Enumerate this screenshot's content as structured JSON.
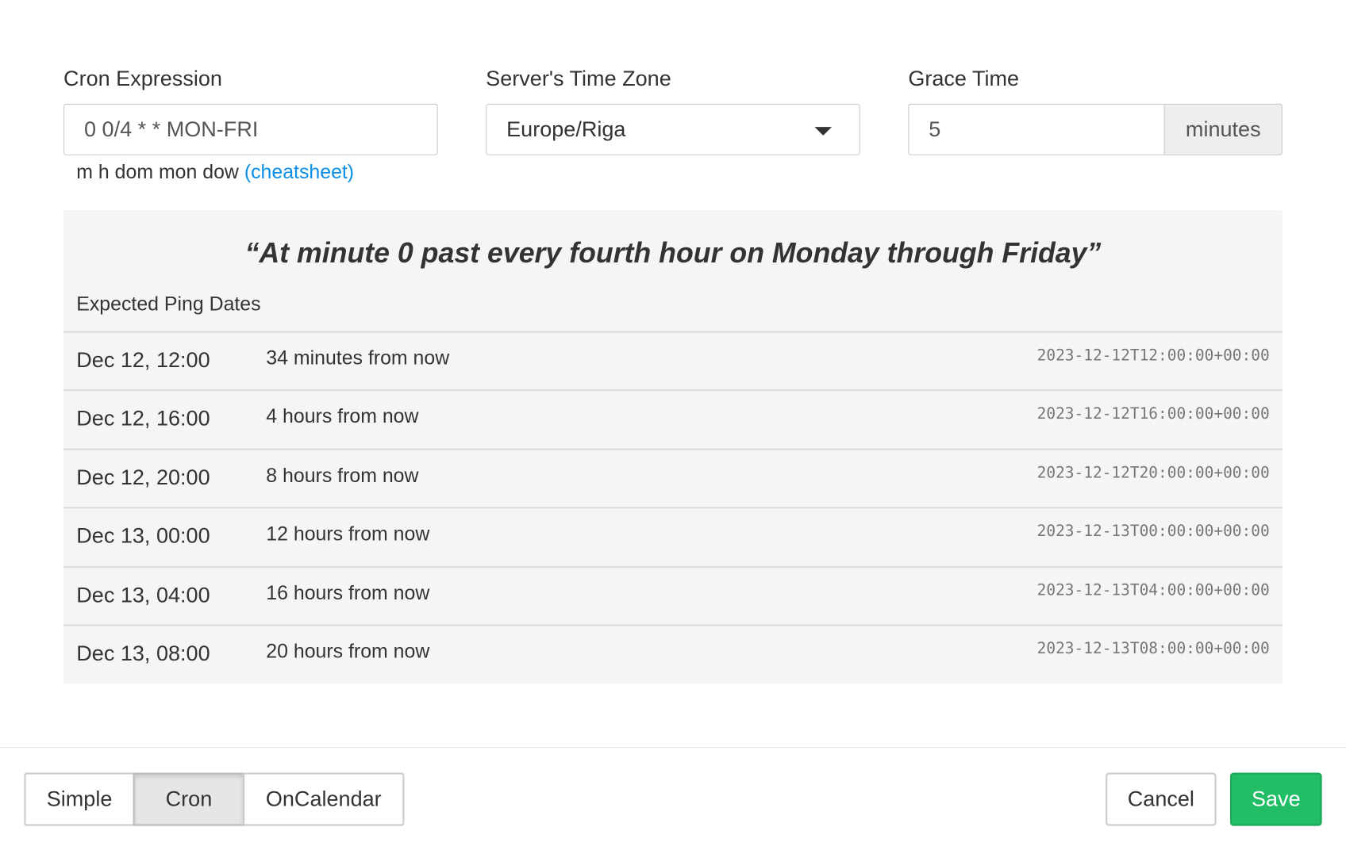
{
  "cron": {
    "label": "Cron Expression",
    "value": "0 0/4 * * MON-FRI",
    "help": "m h dom mon dow",
    "cheatsheet": "(cheatsheet)"
  },
  "timezone": {
    "label": "Server's Time Zone",
    "value": "Europe/Riga",
    "icon": "caret-down-icon"
  },
  "grace": {
    "label": "Grace Time",
    "value": "5",
    "unit": "minutes"
  },
  "description": "“At minute 0 past every fourth hour on Monday through Friday”",
  "expected_label": "Expected Ping Dates",
  "pings": [
    {
      "date": "Dec 12, 12:00",
      "relative": "34 minutes from now",
      "iso": "2023-12-12T12:00:00+00:00"
    },
    {
      "date": "Dec 12, 16:00",
      "relative": "4 hours from now",
      "iso": "2023-12-12T16:00:00+00:00"
    },
    {
      "date": "Dec 12, 20:00",
      "relative": "8 hours from now",
      "iso": "2023-12-12T20:00:00+00:00"
    },
    {
      "date": "Dec 13, 00:00",
      "relative": "12 hours from now",
      "iso": "2023-12-13T00:00:00+00:00"
    },
    {
      "date": "Dec 13, 04:00",
      "relative": "16 hours from now",
      "iso": "2023-12-13T04:00:00+00:00"
    },
    {
      "date": "Dec 13, 08:00",
      "relative": "20 hours from now",
      "iso": "2023-12-13T08:00:00+00:00"
    }
  ],
  "footer": {
    "modes": [
      "Simple",
      "Cron",
      "OnCalendar"
    ],
    "active_mode": "Cron",
    "cancel": "Cancel",
    "save": "Save"
  },
  "colors": {
    "accent_link": "#0a8fe6",
    "save": "#22bd67",
    "panel_bg": "#f5f5f5"
  }
}
